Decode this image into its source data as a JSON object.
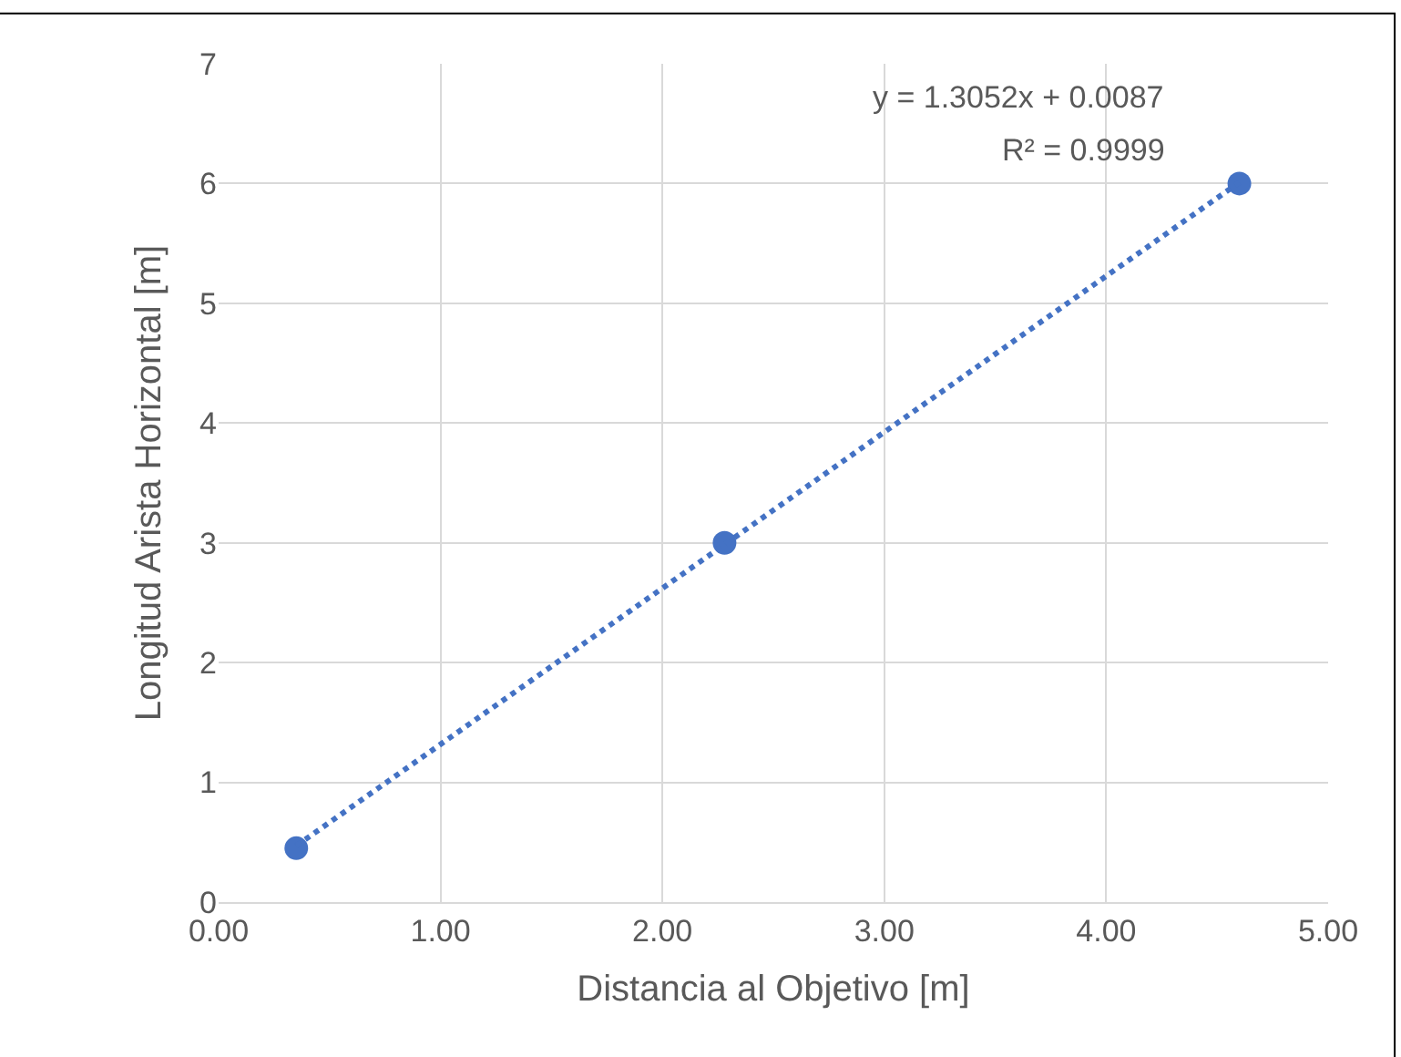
{
  "chart_data": {
    "type": "scatter",
    "xlabel": "Distancia al Objetivo [m]",
    "ylabel": "Longitud Arista Horizontal [m]",
    "series": [
      {
        "color": "#4472c4",
        "x": [
          0.35,
          2.28,
          4.6
        ],
        "values": [
          0.45,
          3.0,
          6.0
        ],
        "marker": "circle"
      },
      {
        "type": "line",
        "color": "#4472c4",
        "x": [
          0.35,
          4.6
        ],
        "values": [
          0.47,
          6.01
        ],
        "line_style": "dotted",
        "marker": "none"
      }
    ],
    "annotations": [
      "y = 1.3052x + 0.0087",
      "R² = 0.9999"
    ],
    "xlim": [
      0,
      5
    ],
    "xticks": [
      {
        "value": 0,
        "label": "0.00"
      },
      {
        "value": 1,
        "label": "1.00"
      },
      {
        "value": 2,
        "label": "2.00"
      },
      {
        "value": 3,
        "label": "3.00"
      },
      {
        "value": 4,
        "label": "4.00"
      },
      {
        "value": 5,
        "label": "5.00"
      }
    ],
    "ylim": [
      0,
      7
    ],
    "yticks": [
      0,
      1,
      2,
      3,
      4,
      5,
      6,
      7
    ],
    "grid": true
  }
}
